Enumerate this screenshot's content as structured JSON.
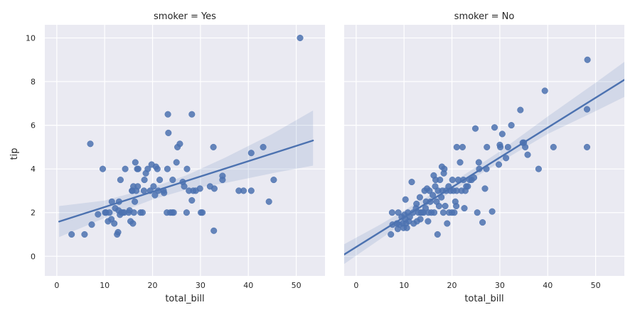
{
  "chart_data": {
    "type": "scatter",
    "xlabel": "total_bill",
    "ylabel": "tip",
    "xlim": [
      -2.5,
      56
    ],
    "ylim": [
      -0.9,
      10.6
    ],
    "x_ticks": [
      "0",
      "10",
      "20",
      "30",
      "40",
      "50"
    ],
    "y_ticks": [
      "0",
      "2",
      "4",
      "6",
      "8",
      "10"
    ],
    "grid": true,
    "point_color": "#4c72b0",
    "background_color": "#eaeaf2",
    "panels": [
      {
        "title": "smoker = Yes",
        "points": [
          [
            3.1,
            1.0
          ],
          [
            5.8,
            1.0
          ],
          [
            7.3,
            1.45
          ],
          [
            7.0,
            5.15
          ],
          [
            8.6,
            1.92
          ],
          [
            9.6,
            4.0
          ],
          [
            10.1,
            2.0
          ],
          [
            10.3,
            2.0
          ],
          [
            10.7,
            1.6
          ],
          [
            11.0,
            2.0
          ],
          [
            11.4,
            1.7
          ],
          [
            11.5,
            2.5
          ],
          [
            12.0,
            1.5
          ],
          [
            12.2,
            2.2
          ],
          [
            12.6,
            1.0
          ],
          [
            12.8,
            1.1
          ],
          [
            12.9,
            2.1
          ],
          [
            13.0,
            2.5
          ],
          [
            13.2,
            1.9
          ],
          [
            13.3,
            3.5
          ],
          [
            13.5,
            2.0
          ],
          [
            13.8,
            2.0
          ],
          [
            14.1,
            2.0
          ],
          [
            14.3,
            4.0
          ],
          [
            15.0,
            2.0
          ],
          [
            15.2,
            2.1
          ],
          [
            15.4,
            1.6
          ],
          [
            15.7,
            3.0
          ],
          [
            15.8,
            3.0
          ],
          [
            15.9,
            1.5
          ],
          [
            16.0,
            3.2
          ],
          [
            16.1,
            2.0
          ],
          [
            16.3,
            2.5
          ],
          [
            16.4,
            4.3
          ],
          [
            16.6,
            3.0
          ],
          [
            16.8,
            4.0
          ],
          [
            16.9,
            3.2
          ],
          [
            17.0,
            4.0
          ],
          [
            17.5,
            2.0
          ],
          [
            17.9,
            2.0
          ],
          [
            18.2,
            3.0
          ],
          [
            18.3,
            3.5
          ],
          [
            18.6,
            3.8
          ],
          [
            19.0,
            4.0
          ],
          [
            19.5,
            3.0
          ],
          [
            19.8,
            4.2
          ],
          [
            20.2,
            3.2
          ],
          [
            20.5,
            2.8
          ],
          [
            20.7,
            4.1
          ],
          [
            21.0,
            4.0
          ],
          [
            21.2,
            3.0
          ],
          [
            21.5,
            3.5
          ],
          [
            22.3,
            3.0
          ],
          [
            22.4,
            2.9
          ],
          [
            23.0,
            2.0
          ],
          [
            23.1,
            4.0
          ],
          [
            23.2,
            6.5
          ],
          [
            23.3,
            5.65
          ],
          [
            23.7,
            2.0
          ],
          [
            24.1,
            2.0
          ],
          [
            24.2,
            3.5
          ],
          [
            24.4,
            2.0
          ],
          [
            25.0,
            4.3
          ],
          [
            25.2,
            5.0
          ],
          [
            25.7,
            5.15
          ],
          [
            26.3,
            3.4
          ],
          [
            26.6,
            3.2
          ],
          [
            27.1,
            2.0
          ],
          [
            27.2,
            4.0
          ],
          [
            27.6,
            3.0
          ],
          [
            28.2,
            6.5
          ],
          [
            28.2,
            2.56
          ],
          [
            28.5,
            3.0
          ],
          [
            29.0,
            3.0
          ],
          [
            29.9,
            3.1
          ],
          [
            30.1,
            2.0
          ],
          [
            30.4,
            2.0
          ],
          [
            32.0,
            3.2
          ],
          [
            32.7,
            5.0
          ],
          [
            32.8,
            1.17
          ],
          [
            32.9,
            3.1
          ],
          [
            34.6,
            3.5
          ],
          [
            34.6,
            3.68
          ],
          [
            38.0,
            3.0
          ],
          [
            39.0,
            3.0
          ],
          [
            40.6,
            4.73
          ],
          [
            40.6,
            3.0
          ],
          [
            43.1,
            5.0
          ],
          [
            44.3,
            2.5
          ],
          [
            45.3,
            3.5
          ],
          [
            50.8,
            10.0
          ]
        ],
        "fit": {
          "x": [
            0.5,
            53.5
          ],
          "y": [
            1.59,
            5.3
          ]
        },
        "ci": {
          "x": [
            0.5,
            10,
            20,
            27,
            35,
            45,
            53.5
          ],
          "upper": [
            2.3,
            2.55,
            3.15,
            3.7,
            4.5,
            5.6,
            6.68
          ],
          "lower": [
            0.88,
            1.75,
            2.6,
            3.05,
            3.35,
            3.8,
            4.15
          ]
        }
      },
      {
        "title": "smoker = No",
        "points": [
          [
            7.25,
            1.0
          ],
          [
            7.5,
            2.0
          ],
          [
            7.6,
            1.45
          ],
          [
            8.5,
            1.5
          ],
          [
            8.7,
            1.25
          ],
          [
            8.8,
            2.0
          ],
          [
            9.0,
            1.45
          ],
          [
            9.5,
            1.8
          ],
          [
            9.7,
            1.5
          ],
          [
            9.9,
            1.3
          ],
          [
            10.1,
            1.9
          ],
          [
            10.3,
            1.7
          ],
          [
            10.3,
            2.6
          ],
          [
            10.4,
            1.5
          ],
          [
            10.6,
            1.3
          ],
          [
            10.8,
            2.0
          ],
          [
            11.0,
            1.6
          ],
          [
            11.2,
            1.8
          ],
          [
            11.6,
            3.4
          ],
          [
            11.9,
            2.0
          ],
          [
            12.0,
            1.5
          ],
          [
            12.5,
            2.2
          ],
          [
            12.6,
            2.4
          ],
          [
            12.7,
            1.6
          ],
          [
            13.0,
            2.0
          ],
          [
            13.3,
            2.7
          ],
          [
            13.4,
            1.7
          ],
          [
            13.5,
            2.0
          ],
          [
            13.8,
            2.0
          ],
          [
            14.1,
            2.0
          ],
          [
            14.3,
            3.0
          ],
          [
            14.5,
            2.2
          ],
          [
            14.6,
            2.5
          ],
          [
            14.8,
            3.1
          ],
          [
            15.0,
            1.6
          ],
          [
            15.1,
            2.0
          ],
          [
            15.3,
            3.0
          ],
          [
            15.5,
            2.5
          ],
          [
            15.7,
            2.0
          ],
          [
            16.0,
            2.8
          ],
          [
            16.2,
            3.7
          ],
          [
            16.3,
            2.0
          ],
          [
            16.5,
            3.2
          ],
          [
            16.6,
            3.5
          ],
          [
            16.8,
            2.5
          ],
          [
            17.0,
            1.0
          ],
          [
            17.1,
            3.0
          ],
          [
            17.3,
            2.3
          ],
          [
            17.5,
            3.5
          ],
          [
            17.8,
            2.7
          ],
          [
            17.9,
            4.1
          ],
          [
            18.0,
            3.0
          ],
          [
            18.2,
            2.0
          ],
          [
            18.3,
            3.8
          ],
          [
            18.4,
            4.0
          ],
          [
            18.6,
            2.3
          ],
          [
            18.8,
            3.0
          ],
          [
            19.0,
            1.5
          ],
          [
            19.3,
            3.2
          ],
          [
            19.4,
            2.0
          ],
          [
            19.7,
            3.0
          ],
          [
            20.0,
            2.0
          ],
          [
            20.1,
            3.5
          ],
          [
            20.3,
            3.0
          ],
          [
            20.5,
            2.0
          ],
          [
            20.7,
            2.5
          ],
          [
            20.9,
            2.3
          ],
          [
            21.0,
            3.0
          ],
          [
            21.0,
            5.0
          ],
          [
            21.3,
            3.5
          ],
          [
            21.7,
            4.3
          ],
          [
            22.0,
            3.0
          ],
          [
            22.2,
            5.0
          ],
          [
            22.4,
            3.5
          ],
          [
            22.6,
            2.2
          ],
          [
            22.8,
            3.0
          ],
          [
            23.0,
            3.2
          ],
          [
            23.3,
            3.2
          ],
          [
            23.7,
            3.5
          ],
          [
            24.1,
            3.5
          ],
          [
            24.6,
            3.6
          ],
          [
            24.9,
            5.85
          ],
          [
            25.3,
            2.0
          ],
          [
            25.6,
            4.3
          ],
          [
            25.7,
            4.0
          ],
          [
            26.4,
            1.55
          ],
          [
            26.9,
            3.1
          ],
          [
            27.2,
            4.0
          ],
          [
            27.3,
            5.0
          ],
          [
            28.4,
            2.05
          ],
          [
            28.9,
            5.9
          ],
          [
            29.8,
            4.2
          ],
          [
            30.0,
            5.1
          ],
          [
            30.1,
            5.0
          ],
          [
            30.5,
            5.6
          ],
          [
            31.3,
            4.5
          ],
          [
            31.7,
            5.0
          ],
          [
            32.4,
            6.0
          ],
          [
            34.3,
            6.7
          ],
          [
            34.8,
            5.2
          ],
          [
            35.0,
            5.2
          ],
          [
            35.3,
            5.0
          ],
          [
            35.8,
            4.65
          ],
          [
            38.1,
            4.0
          ],
          [
            39.4,
            7.58
          ],
          [
            41.2,
            5.0
          ],
          [
            48.3,
            9.0
          ],
          [
            48.2,
            6.73
          ],
          [
            48.2,
            5.0
          ]
        ],
        "fit": {
          "x": [
            -2.5,
            56
          ],
          "y": [
            0.08,
            8.08
          ]
        },
        "ci": {
          "x": [
            -2.5,
            5,
            10,
            17,
            22,
            30,
            40,
            50,
            56
          ],
          "upper": [
            0.55,
            1.45,
            2.1,
            3.0,
            3.65,
            4.8,
            6.4,
            7.95,
            8.9
          ],
          "lower": [
            -0.35,
            0.78,
            1.55,
            2.55,
            3.25,
            4.3,
            5.6,
            6.65,
            7.3
          ]
        }
      }
    ]
  }
}
